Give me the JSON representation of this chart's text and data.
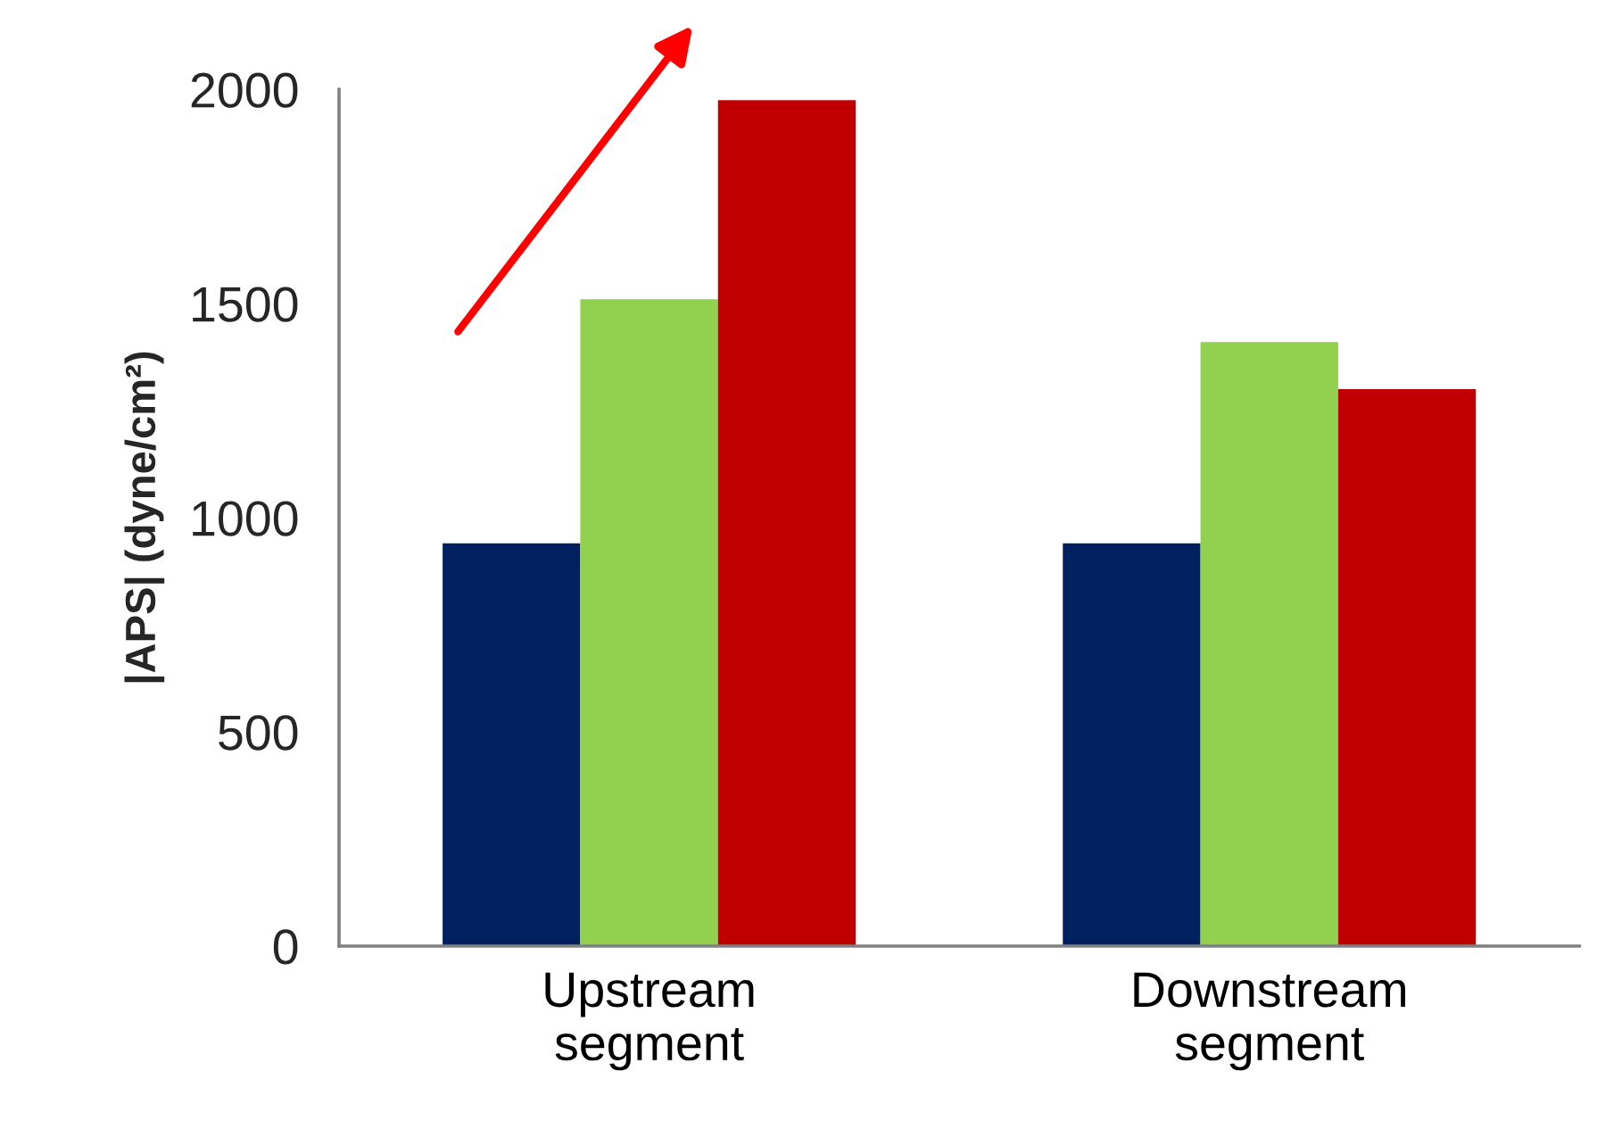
{
  "chart_data": {
    "type": "bar",
    "ylabel": "|APS| (dyne/cm²)",
    "categories": [
      "Upstream\nsegment",
      "Downstream\nsegment"
    ],
    "series": [
      {
        "color": "#002060",
        "values": [
          940,
          940
        ]
      },
      {
        "color": "#92d050",
        "values": [
          1510,
          1410
        ]
      },
      {
        "color": "#c00000",
        "values": [
          1975,
          1300
        ]
      }
    ],
    "ylim": [
      0,
      2000
    ],
    "yticks": [
      0,
      500,
      1000,
      1500,
      2000
    ],
    "grid": false,
    "legend": false
  }
}
